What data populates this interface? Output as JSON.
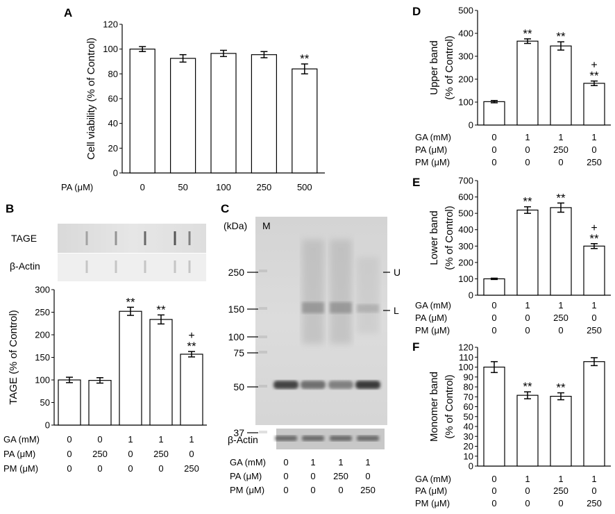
{
  "panels": {
    "A": "A",
    "B": "B",
    "C": "C",
    "D": "D",
    "E": "E",
    "F": "F"
  },
  "chart_data": [
    {
      "id": "A",
      "type": "bar",
      "ylabel": "Cell viability (% of Control)",
      "ylim": [
        0,
        120
      ],
      "yticks": [
        0,
        20,
        40,
        60,
        80,
        100,
        120
      ],
      "row_labels": [
        "PA (μM)"
      ],
      "categories": [
        [
          "0"
        ],
        [
          "50"
        ],
        [
          "100"
        ],
        [
          "250"
        ],
        [
          "500"
        ]
      ],
      "values": [
        100,
        92.5,
        96.5,
        95.5,
        84
      ],
      "errors": [
        2,
        3,
        2.5,
        2.5,
        4
      ],
      "annotations": [
        "",
        "",
        "",
        "",
        "**"
      ],
      "plus": [
        "",
        "",
        "",
        "",
        ""
      ]
    },
    {
      "id": "B",
      "type": "bar",
      "ylabel": "TAGE (% of Control)",
      "ylim": [
        0,
        300
      ],
      "yticks": [
        0,
        50,
        100,
        150,
        200,
        250,
        300
      ],
      "row_labels": [
        "GA (mM)",
        "PA (μM)",
        "PM (μM)"
      ],
      "categories": [
        [
          "0",
          "0",
          "0"
        ],
        [
          "0",
          "250",
          "0"
        ],
        [
          "1",
          "0",
          "0"
        ],
        [
          "1",
          "250",
          "0"
        ],
        [
          "1",
          "0",
          "250"
        ]
      ],
      "values": [
        100,
        99,
        252,
        234,
        157
      ],
      "errors": [
        6,
        6,
        9,
        10,
        6
      ],
      "annotations": [
        "",
        "",
        "**",
        "**",
        "**"
      ],
      "plus": [
        "",
        "",
        "",
        "",
        "+"
      ]
    },
    {
      "id": "D",
      "type": "bar",
      "ylabel": [
        "Upper band",
        "(% of Control)"
      ],
      "ylim": [
        0,
        500
      ],
      "yticks": [
        0,
        100,
        200,
        300,
        400,
        500
      ],
      "row_labels": [
        "GA (mM)",
        "PA (μM)",
        "PM (μM)"
      ],
      "categories": [
        [
          "0",
          "0",
          "0"
        ],
        [
          "1",
          "0",
          "0"
        ],
        [
          "1",
          "250",
          "0"
        ],
        [
          "1",
          "0",
          "250"
        ]
      ],
      "values": [
        102,
        366,
        345,
        182
      ],
      "errors": [
        5,
        10,
        18,
        10
      ],
      "annotations": [
        "",
        "**",
        "**",
        "**"
      ],
      "plus": [
        "",
        "",
        "",
        "+"
      ]
    },
    {
      "id": "E",
      "type": "bar",
      "ylabel": [
        "Lower band",
        "(% of Control)"
      ],
      "ylim": [
        0,
        700
      ],
      "yticks": [
        0,
        100,
        200,
        300,
        400,
        500,
        600,
        700
      ],
      "row_labels": [
        "GA (mM)",
        "PA (μM)",
        "PM (μM)"
      ],
      "categories": [
        [
          "0",
          "0",
          "0"
        ],
        [
          "1",
          "0",
          "0"
        ],
        [
          "1",
          "250",
          "0"
        ],
        [
          "1",
          "0",
          "250"
        ]
      ],
      "values": [
        100,
        520,
        535,
        300
      ],
      "errors": [
        4,
        20,
        28,
        15
      ],
      "annotations": [
        "",
        "**",
        "**",
        "**"
      ],
      "plus": [
        "",
        "",
        "",
        "+"
      ]
    },
    {
      "id": "F",
      "type": "bar",
      "ylabel": [
        "Monomer band",
        "(% of Control)"
      ],
      "ylim": [
        0,
        120
      ],
      "yticks": [
        0,
        10,
        20,
        30,
        40,
        50,
        60,
        70,
        80,
        90,
        100,
        110,
        120
      ],
      "row_labels": [
        "GA (mM)",
        "PA (μM)",
        "PM (μM)"
      ],
      "categories": [
        [
          "0",
          "0",
          "0"
        ],
        [
          "1",
          "0",
          "0"
        ],
        [
          "1",
          "250",
          "0"
        ],
        [
          "1",
          "0",
          "250"
        ]
      ],
      "values": [
        100,
        71.5,
        70.5,
        105.5
      ],
      "errors": [
        5.5,
        3.5,
        3.5,
        4
      ],
      "annotations": [
        "",
        "**",
        "**",
        ""
      ],
      "plus": [
        "",
        "",
        "",
        ""
      ]
    }
  ],
  "blot_B": {
    "rows": [
      "TAGE",
      "β-Actin"
    ]
  },
  "blot_C": {
    "kda": "(kDa)",
    "marker": "M",
    "markers": [
      "250",
      "150",
      "100",
      "75",
      "50",
      "37"
    ],
    "bands": [
      "U",
      "L"
    ],
    "actin": "β-Actin",
    "row_labels": [
      "GA (mM)",
      "PA (μM)",
      "PM (μM)"
    ],
    "lanes": [
      [
        "0",
        "0",
        "0"
      ],
      [
        "1",
        "0",
        "0"
      ],
      [
        "1",
        "250",
        "0"
      ],
      [
        "1",
        "0",
        "250"
      ]
    ]
  }
}
